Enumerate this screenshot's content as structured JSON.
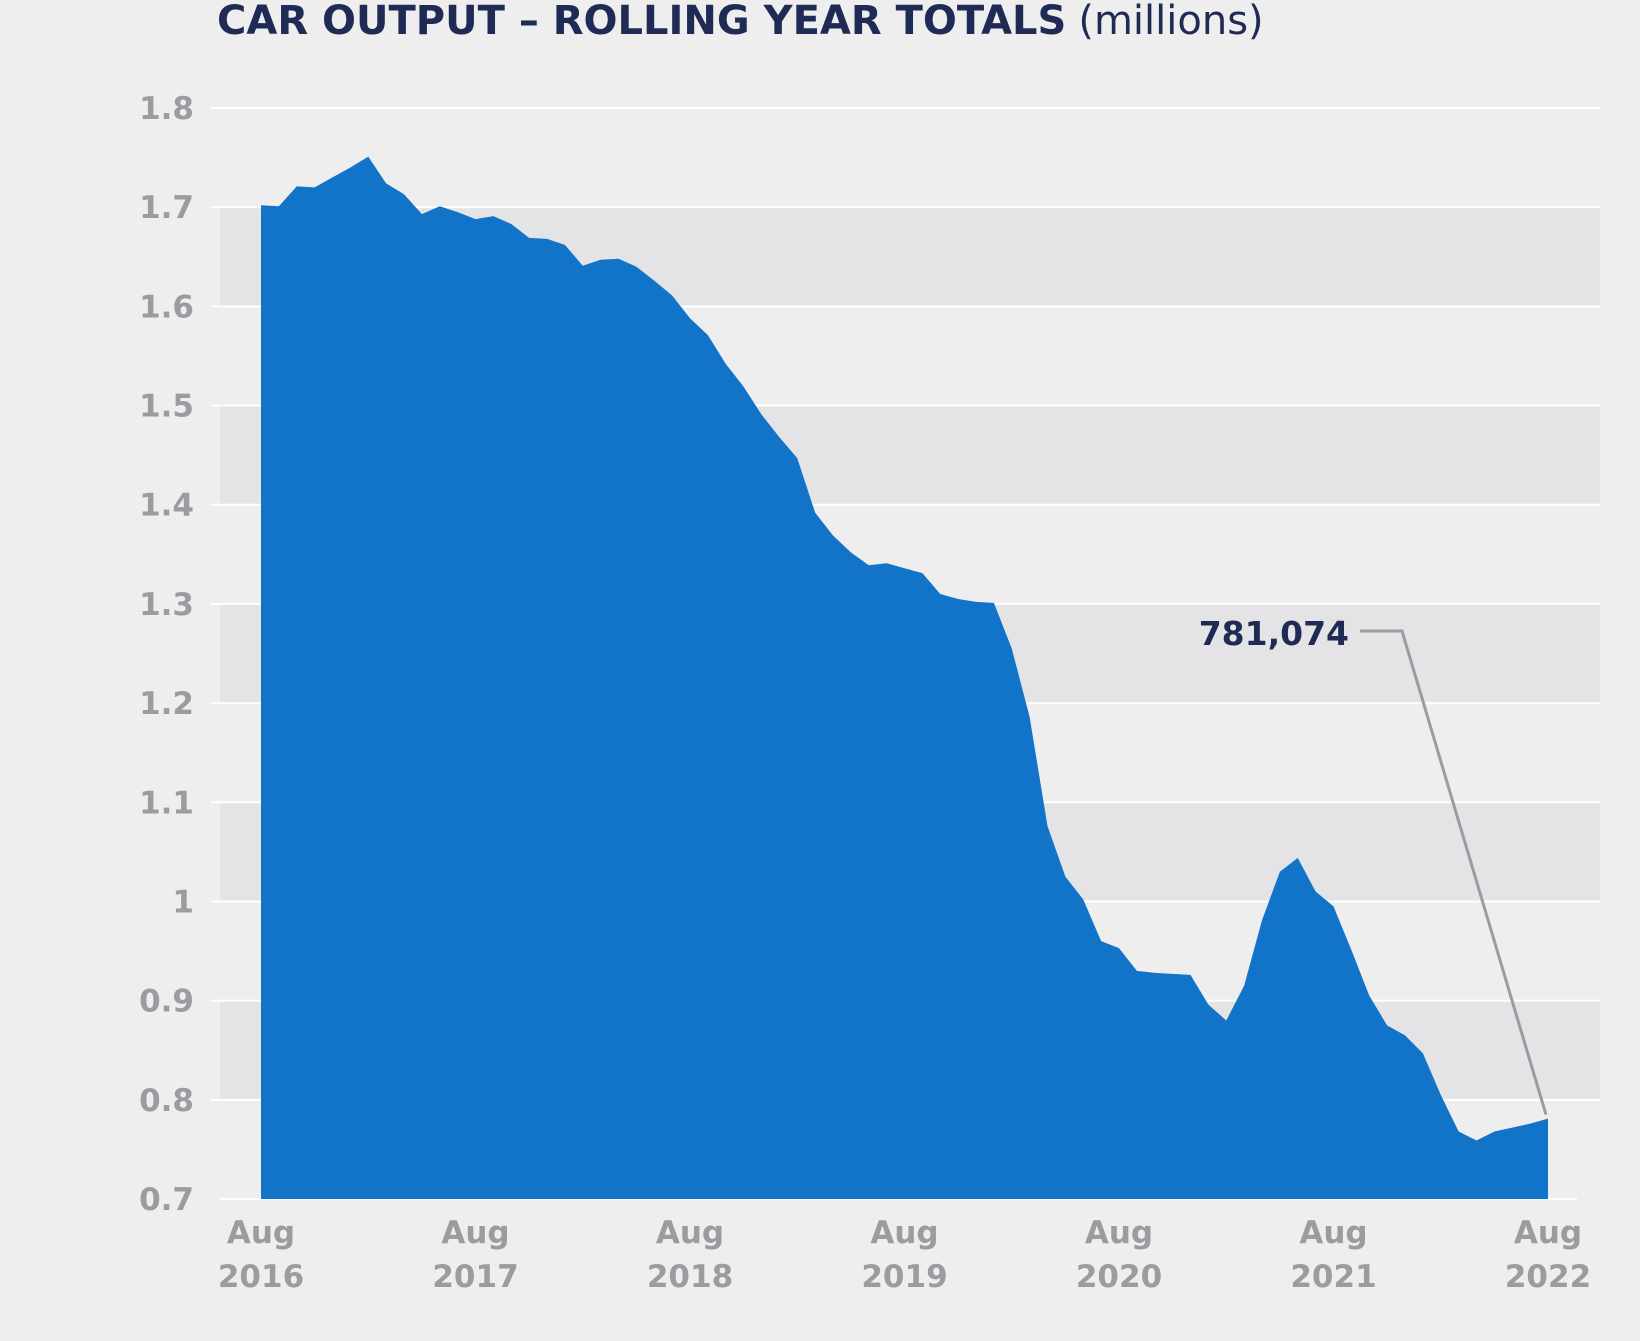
{
  "chart_data": {
    "type": "area",
    "title": "CAR OUTPUT – ROLLING YEAR TOTALS",
    "unit": "(millions)",
    "categories": [
      "Aug 2016",
      null,
      null,
      null,
      null,
      null,
      null,
      null,
      null,
      null,
      null,
      null,
      "Aug 2017",
      null,
      null,
      null,
      null,
      null,
      null,
      null,
      null,
      null,
      null,
      null,
      "Aug 2018",
      null,
      null,
      null,
      null,
      null,
      null,
      null,
      null,
      null,
      null,
      null,
      "Aug 2019",
      null,
      null,
      null,
      null,
      null,
      null,
      null,
      null,
      null,
      null,
      null,
      "Aug 2020",
      null,
      null,
      null,
      null,
      null,
      null,
      null,
      null,
      null,
      null,
      null,
      "Aug 2021",
      null,
      null,
      null,
      null,
      null,
      null,
      null,
      null,
      null,
      null,
      null,
      "Aug 2022"
    ],
    "values": [
      1.702,
      1.701,
      1.721,
      1.72,
      1.73,
      1.74,
      1.751,
      1.724,
      1.713,
      1.693,
      1.701,
      1.695,
      1.688,
      1.691,
      1.683,
      1.669,
      1.668,
      1.662,
      1.641,
      1.647,
      1.648,
      1.64,
      1.626,
      1.611,
      1.588,
      1.571,
      1.542,
      1.519,
      1.491,
      1.468,
      1.447,
      1.392,
      1.369,
      1.352,
      1.339,
      1.341,
      1.336,
      1.331,
      1.31,
      1.305,
      1.302,
      1.301,
      1.255,
      1.186,
      1.076,
      1.025,
      1.002,
      0.96,
      0.953,
      0.93,
      0.928,
      0.927,
      0.926,
      0.896,
      0.88,
      0.915,
      0.981,
      1.03,
      1.044,
      1.01,
      0.995,
      0.951,
      0.905,
      0.875,
      0.865,
      0.847,
      0.805,
      0.768,
      0.759,
      0.768,
      0.772,
      0.776,
      0.781074
    ],
    "value_labels": [
      null,
      null,
      null,
      null,
      null,
      null,
      null,
      null,
      null,
      null,
      null,
      null,
      null,
      null,
      null,
      null,
      null,
      null,
      null,
      null,
      null,
      null,
      null,
      null,
      null,
      null,
      null,
      null,
      null,
      null,
      null,
      null,
      null,
      null,
      null,
      null,
      null,
      null,
      null,
      null,
      null,
      null,
      null,
      null,
      null,
      null,
      null,
      null,
      null,
      null,
      null,
      null,
      null,
      null,
      null,
      null,
      null,
      null,
      null,
      null,
      null,
      null,
      null,
      null,
      null,
      null,
      null,
      null,
      null,
      null,
      null,
      null,
      "781,074"
    ],
    "color": "#1174c9",
    "ylim": [
      0.7,
      1.8
    ],
    "yticks": [
      0.7,
      0.8,
      0.9,
      1,
      1.1,
      1.2,
      1.3,
      1.4,
      1.5,
      1.6,
      1.7,
      1.8
    ],
    "grid": true,
    "bands": true
  }
}
